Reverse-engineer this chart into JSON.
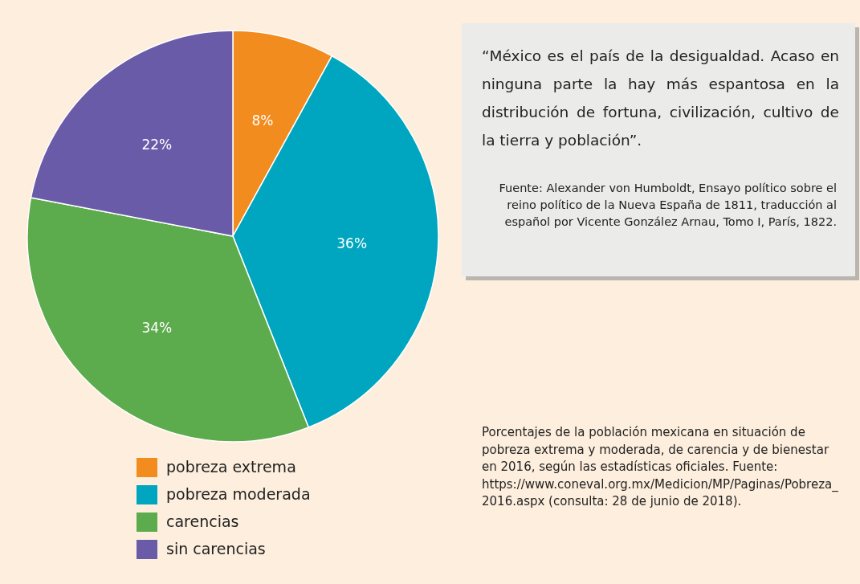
{
  "chart_data": {
    "type": "pie",
    "categories": [
      "pobreza extrema",
      "pobreza moderada",
      "carencias",
      "sin carencias"
    ],
    "values": [
      8,
      36,
      34,
      22
    ],
    "colors": [
      "#f28c1e",
      "#00a6bf",
      "#5cab4c",
      "#6a5ba8"
    ],
    "value_labels": [
      "8%",
      "36%",
      "34%",
      "22%"
    ],
    "legend": "bottom",
    "annotations": [
      "“México es el país de la desigualdad. Acaso en ninguna parte la hay más espantosa en la distribución de fortuna, civilización, cultivo de la tierra y población”.",
      "Fuente: Alexander von Humboldt, Ensayo político sobre el reino político de la Nueva España de 1811, traducción al español por Vicente González Arnau, Tomo I, París, 1822.",
      "Porcentajes de la población mexicana en situación de pobreza extrema y moderada, de carencia y de bienestar en 2016, según las estadísticas oficiales. Fuente: https://www.coneval.org.mx/Medicion/MP/Paginas/Pobreza_2016.aspx (consulta: 28 de junio de 2018)."
    ]
  }
}
